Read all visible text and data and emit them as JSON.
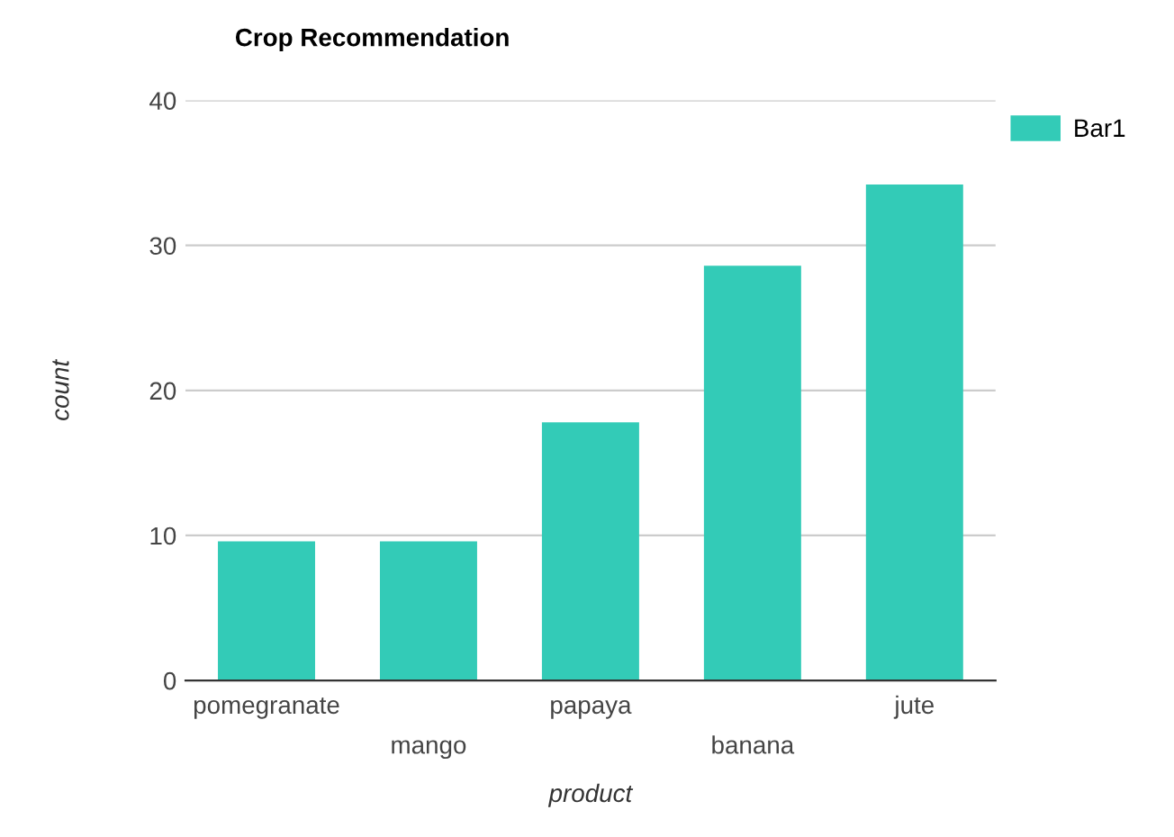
{
  "chart_data": {
    "type": "bar",
    "title": "Crop Recommendation",
    "xlabel": "product",
    "ylabel": "count",
    "categories": [
      "pomegranate",
      "mango",
      "papaya",
      "banana",
      "jute"
    ],
    "series": [
      {
        "name": "Bar1",
        "color": "#33cbb7",
        "values": [
          9.6,
          9.6,
          17.8,
          28.6,
          34.2
        ]
      }
    ],
    "ylim": [
      0,
      40
    ],
    "yticks": [
      0,
      10,
      20,
      30,
      40
    ],
    "grid": "y",
    "legend": "top right"
  }
}
